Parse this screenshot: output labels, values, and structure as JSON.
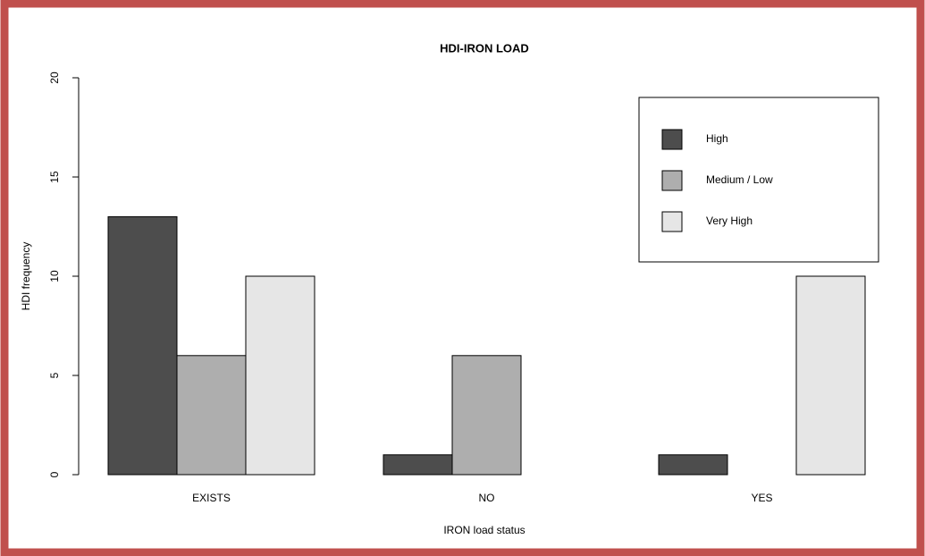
{
  "chart_data": {
    "type": "bar",
    "title": "HDI-IRON LOAD",
    "x_label": "IRON load status",
    "y_label": "HDI frequency",
    "categories": [
      "EXISTS",
      "NO",
      "YES"
    ],
    "series": [
      {
        "name": "High",
        "color": "#4d4d4d",
        "values": [
          13,
          1,
          1
        ]
      },
      {
        "name": "Medium / Low",
        "color": "#aeaeae",
        "values": [
          6,
          6,
          0
        ]
      },
      {
        "name": "Very High",
        "color": "#e6e6e6",
        "values": [
          10,
          0,
          10
        ]
      }
    ],
    "ylim": [
      0,
      20
    ],
    "yticks": [
      0,
      5,
      10,
      15,
      20
    ],
    "legend": "topright"
  }
}
